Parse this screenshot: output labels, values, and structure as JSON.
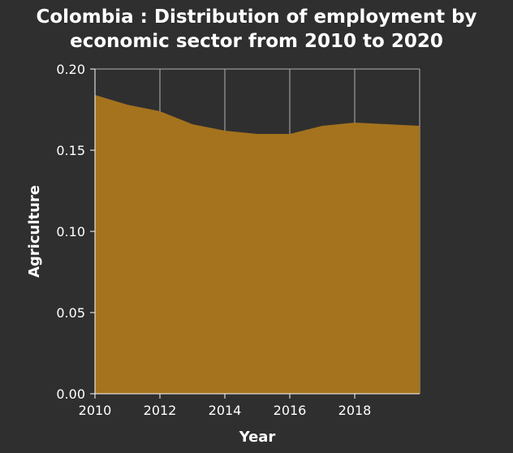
{
  "chart_data": {
    "type": "area",
    "title": [
      "Colombia : Distribution of employment by",
      "economic sector from 2010 to 2020"
    ],
    "xlabel": "Year",
    "ylabel": "Agriculture",
    "x": [
      2010,
      2011,
      2012,
      2013,
      2014,
      2015,
      2016,
      2017,
      2018,
      2019,
      2020
    ],
    "values": [
      0.184,
      0.178,
      0.174,
      0.166,
      0.162,
      0.16,
      0.16,
      0.165,
      0.167,
      0.166,
      0.165
    ],
    "xlim": [
      2010,
      2020
    ],
    "ylim": [
      0,
      0.2
    ],
    "xticks": [
      2010,
      2012,
      2014,
      2016,
      2018
    ],
    "xtick_labels": [
      "2010",
      "2012",
      "2014",
      "2016",
      "2018"
    ],
    "yticks": [
      0,
      0.05,
      0.1,
      0.15,
      0.2
    ],
    "ytick_labels": [
      "0.00",
      "0.05",
      "0.10",
      "0.15",
      "0.20"
    ],
    "grid": true,
    "colors": {
      "fill": "#a5731e",
      "background": "#2f2f2f",
      "grid": "#b0b0b0",
      "text": "#ffffff"
    }
  }
}
